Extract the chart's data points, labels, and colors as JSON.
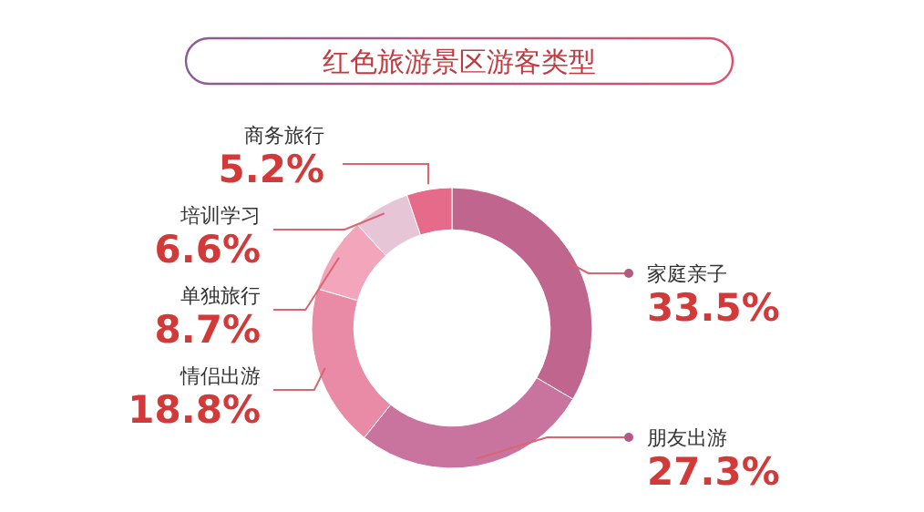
{
  "chart_data": {
    "type": "donut",
    "title": "红色旅游景区游客类型",
    "categories": [
      "家庭亲子",
      "朋友出游",
      "情侣出游",
      "单独旅行",
      "培训学习",
      "商务旅行"
    ],
    "values": [
      33.5,
      27.3,
      18.8,
      8.7,
      6.6,
      5.2
    ],
    "colors": [
      "#c0668e",
      "#c8749e",
      "#e98aa6",
      "#f2a5bb",
      "#e6c6d6",
      "#e66a8a"
    ],
    "value_labels": [
      "33.5%",
      "27.3%",
      "18.8%",
      "8.7%",
      "6.6%",
      "5.2%"
    ]
  }
}
